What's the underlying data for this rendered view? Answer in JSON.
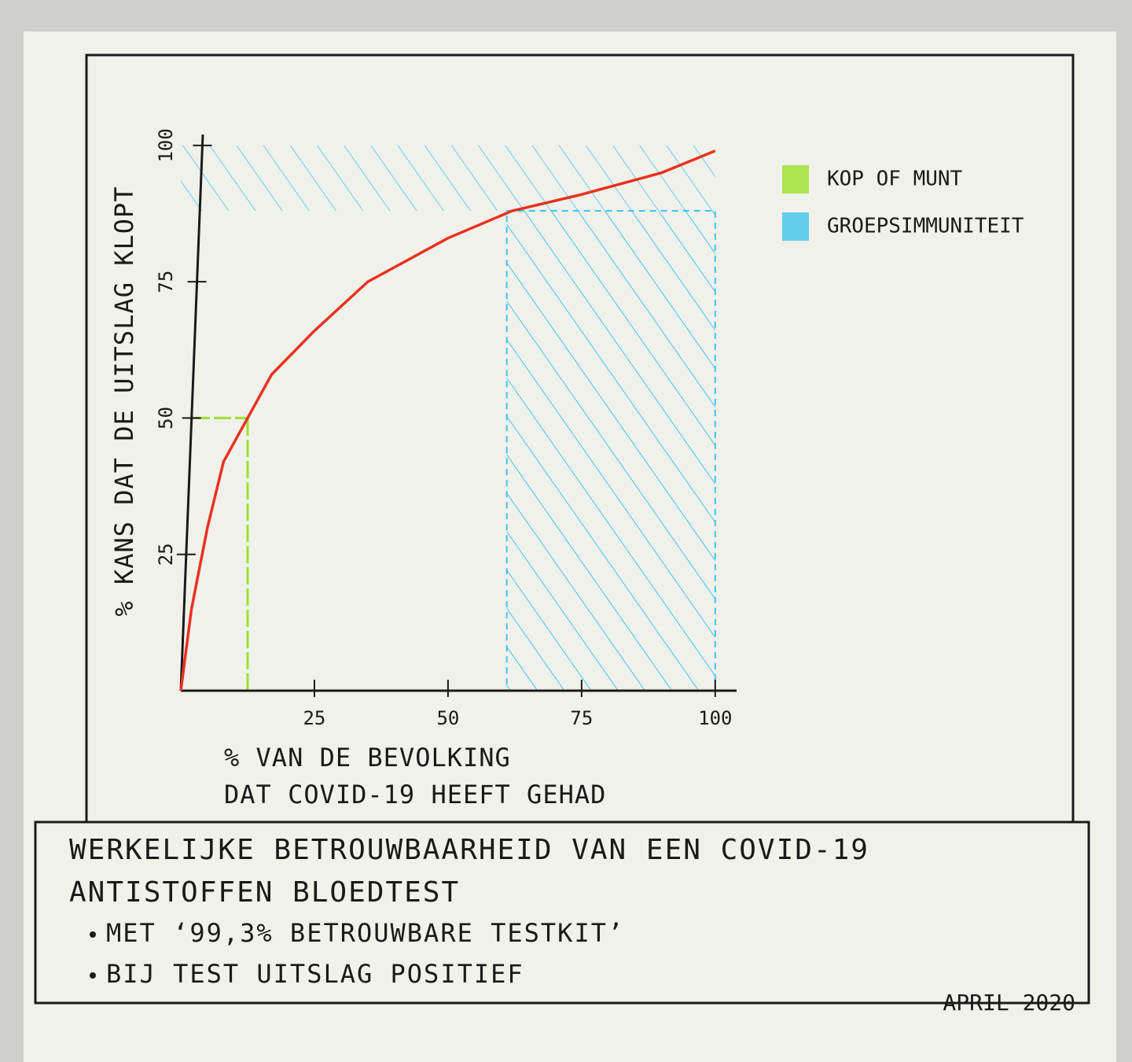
{
  "chart_data": {
    "type": "line",
    "x_label": [
      "% VAN DE BEVOLKING",
      "DAT COVID-19 HEEFT GEHAD"
    ],
    "y_label": "% KANS DAT DE UITSLAG KLOPT",
    "x": [
      0,
      2,
      5,
      8,
      12.5,
      17,
      25,
      35,
      50,
      62,
      75,
      90,
      100
    ],
    "values": [
      0,
      15,
      30,
      42,
      50,
      58,
      66,
      75,
      83,
      88,
      91,
      95,
      99
    ],
    "color": "#e8321e",
    "xlim": [
      0,
      104
    ],
    "ylim": [
      0,
      102
    ],
    "xticks": [
      25,
      50,
      75,
      100
    ],
    "yticks": [
      25,
      50,
      75,
      100
    ],
    "highlights": [
      {
        "name": "KOP OF MUNT",
        "color": "#9ee02a",
        "x": 12.5,
        "y": 50
      },
      {
        "name": "GROEPSIMMUNITEIT",
        "color": "#3fc3ee",
        "x": [
          61,
          100
        ],
        "y": [
          88,
          100
        ]
      }
    ],
    "caption": {
      "title": [
        "WERKELIJKE BETROUWBAARHEID VAN EEN COVID-19",
        "ANTISTOFFEN BLOEDTEST"
      ],
      "bullets": [
        "MET ‘99,3% BETROUWBARE TESTKIT’",
        "BIJ TEST UITSLAG POSITIEF"
      ],
      "date": "APRIL 2020"
    }
  }
}
